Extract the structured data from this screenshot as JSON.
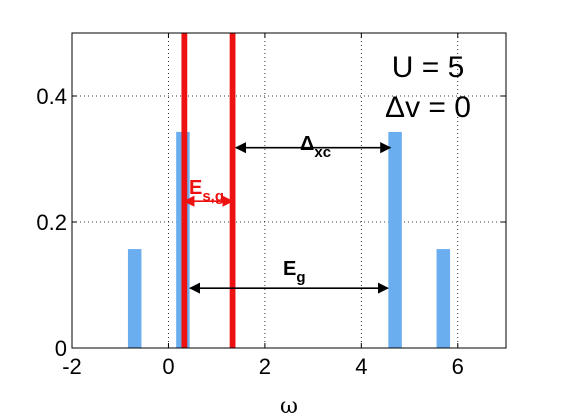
{
  "chart_data": {
    "type": "bar",
    "title": "",
    "xlabel": "ω",
    "ylabel": "",
    "xlim": [
      -2,
      7
    ],
    "ylim": [
      0,
      0.5
    ],
    "x_ticks": [
      -2,
      0,
      2,
      4,
      6
    ],
    "x_tick_labels": [
      "-2",
      "0",
      "2",
      "4",
      "6"
    ],
    "y_ticks": [
      0,
      0.2,
      0.4
    ],
    "y_tick_labels": [
      "0",
      "0.2",
      "0.4"
    ],
    "grid": true,
    "series": [
      {
        "color": "#6aaef0",
        "bar_width": 0.28,
        "points": [
          {
            "x": -0.7,
            "y": 0.157
          },
          {
            "x": 0.3,
            "y": 0.343
          },
          {
            "x": 4.7,
            "y": 0.343
          },
          {
            "x": 5.7,
            "y": 0.157
          }
        ]
      },
      {
        "color": "#ee1111",
        "bar_width": 0.12,
        "points": [
          {
            "x": 0.33,
            "y": 0.5
          },
          {
            "x": 1.33,
            "y": 0.5
          }
        ]
      }
    ],
    "annotations": [
      {
        "text": "U = 5",
        "kind": "label"
      },
      {
        "text": "Δv = 0",
        "kind": "label"
      },
      {
        "main": "Δ",
        "sub": "xc",
        "kind": "arrow",
        "x_from": 1.4,
        "x_to": 4.6,
        "y": 0.318,
        "color": "#000000"
      },
      {
        "main": "E",
        "sub": "s,g",
        "kind": "arrow",
        "x_from": 0.33,
        "x_to": 1.33,
        "y": 0.233,
        "color": "#ee1111"
      },
      {
        "main": "E",
        "sub": "g",
        "kind": "arrow",
        "x_from": 0.45,
        "x_to": 4.55,
        "y": 0.095,
        "color": "#000000"
      }
    ]
  }
}
